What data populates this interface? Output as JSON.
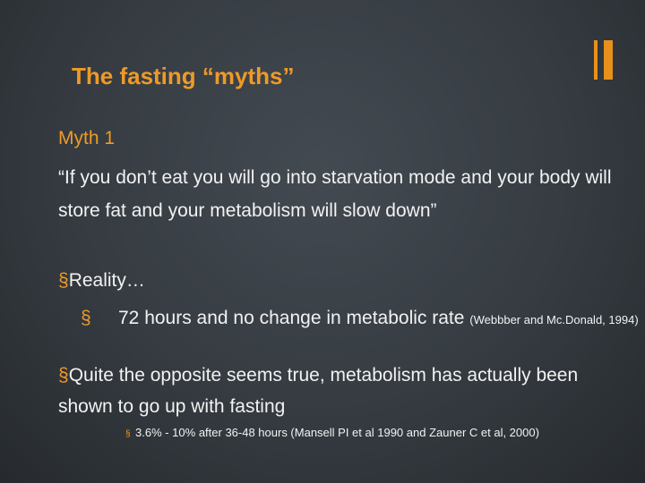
{
  "title": "The fasting “myths”",
  "heading": "Myth 1",
  "quote": "“If you don’t eat you will go into starvation mode and your body will store fat and your metabolism will slow down”",
  "bullets": [
    {
      "text": "Reality…",
      "sub": [
        {
          "text": "72 hours and no change in metabolic rate",
          "citation": "(Webbber and Mc.Donald, 1994)"
        }
      ]
    },
    {
      "text": "Quite the opposite seems true, metabolism has actually been shown to go up with fasting",
      "sub": [
        {
          "text": "3.6% - 10% after 36-48 hours (Mansell PI et al 1990 and Zauner C et al, 2000)"
        }
      ]
    }
  ]
}
